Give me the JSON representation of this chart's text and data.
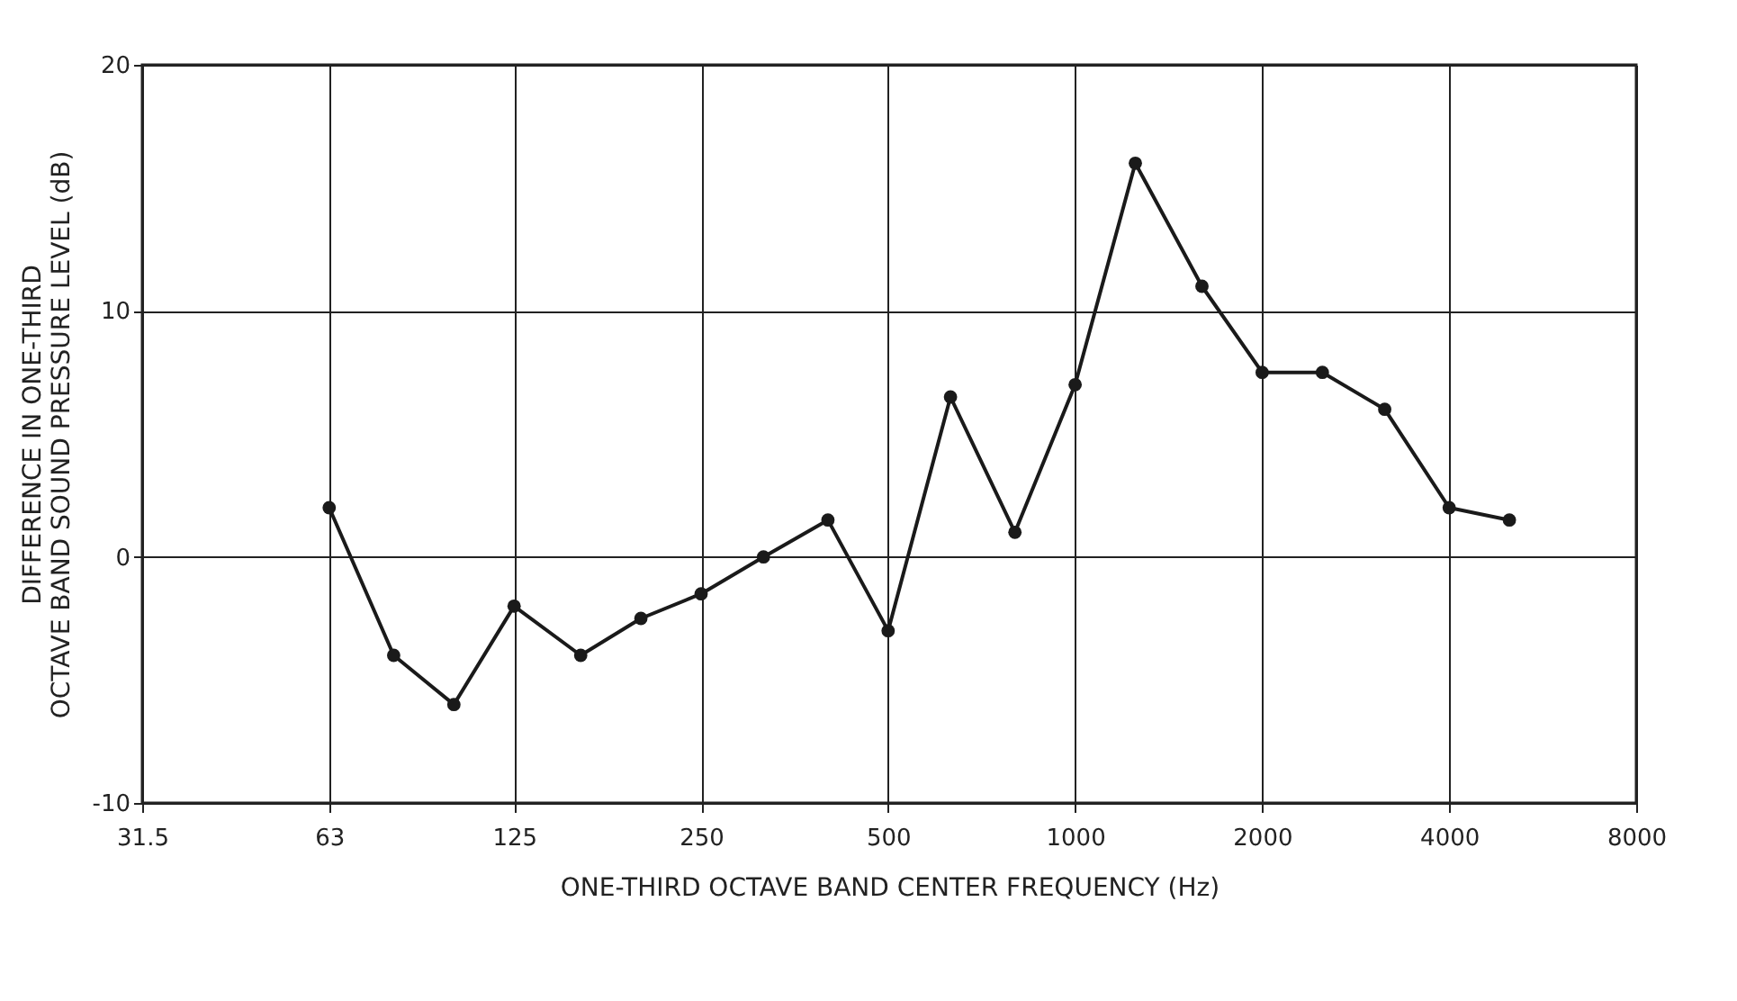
{
  "chart_data": {
    "type": "line",
    "xlabel": "ONE-THIRD OCTAVE BAND CENTER FREQUENCY (Hz)",
    "ylabel": "DIFFERENCE IN ONE-THIRD\nOCTAVE BAND SOUND PRESSURE LEVEL (dB)",
    "x": [
      63,
      80,
      100,
      125,
      160,
      200,
      250,
      315,
      400,
      500,
      630,
      800,
      1000,
      1250,
      1600,
      2000,
      2500,
      3150,
      4000,
      5000
    ],
    "series": [
      {
        "color": "#1a1a1a",
        "values": [
          2,
          -4,
          -6,
          -2,
          -4,
          -2.5,
          -1.5,
          0,
          1.5,
          -3,
          6.5,
          1,
          7,
          16,
          11,
          7.5,
          7.5,
          6,
          2,
          1.5
        ]
      }
    ],
    "log": "x",
    "xlim": [
      31.5,
      8000
    ],
    "xticks": [
      31.5,
      63,
      125,
      250,
      500,
      1000,
      2000,
      4000,
      8000
    ],
    "ylim": [
      -10,
      20
    ],
    "yticks": [
      -10,
      0,
      10,
      20
    ],
    "grid": true,
    "marker": "circle",
    "line_style": "solid"
  }
}
